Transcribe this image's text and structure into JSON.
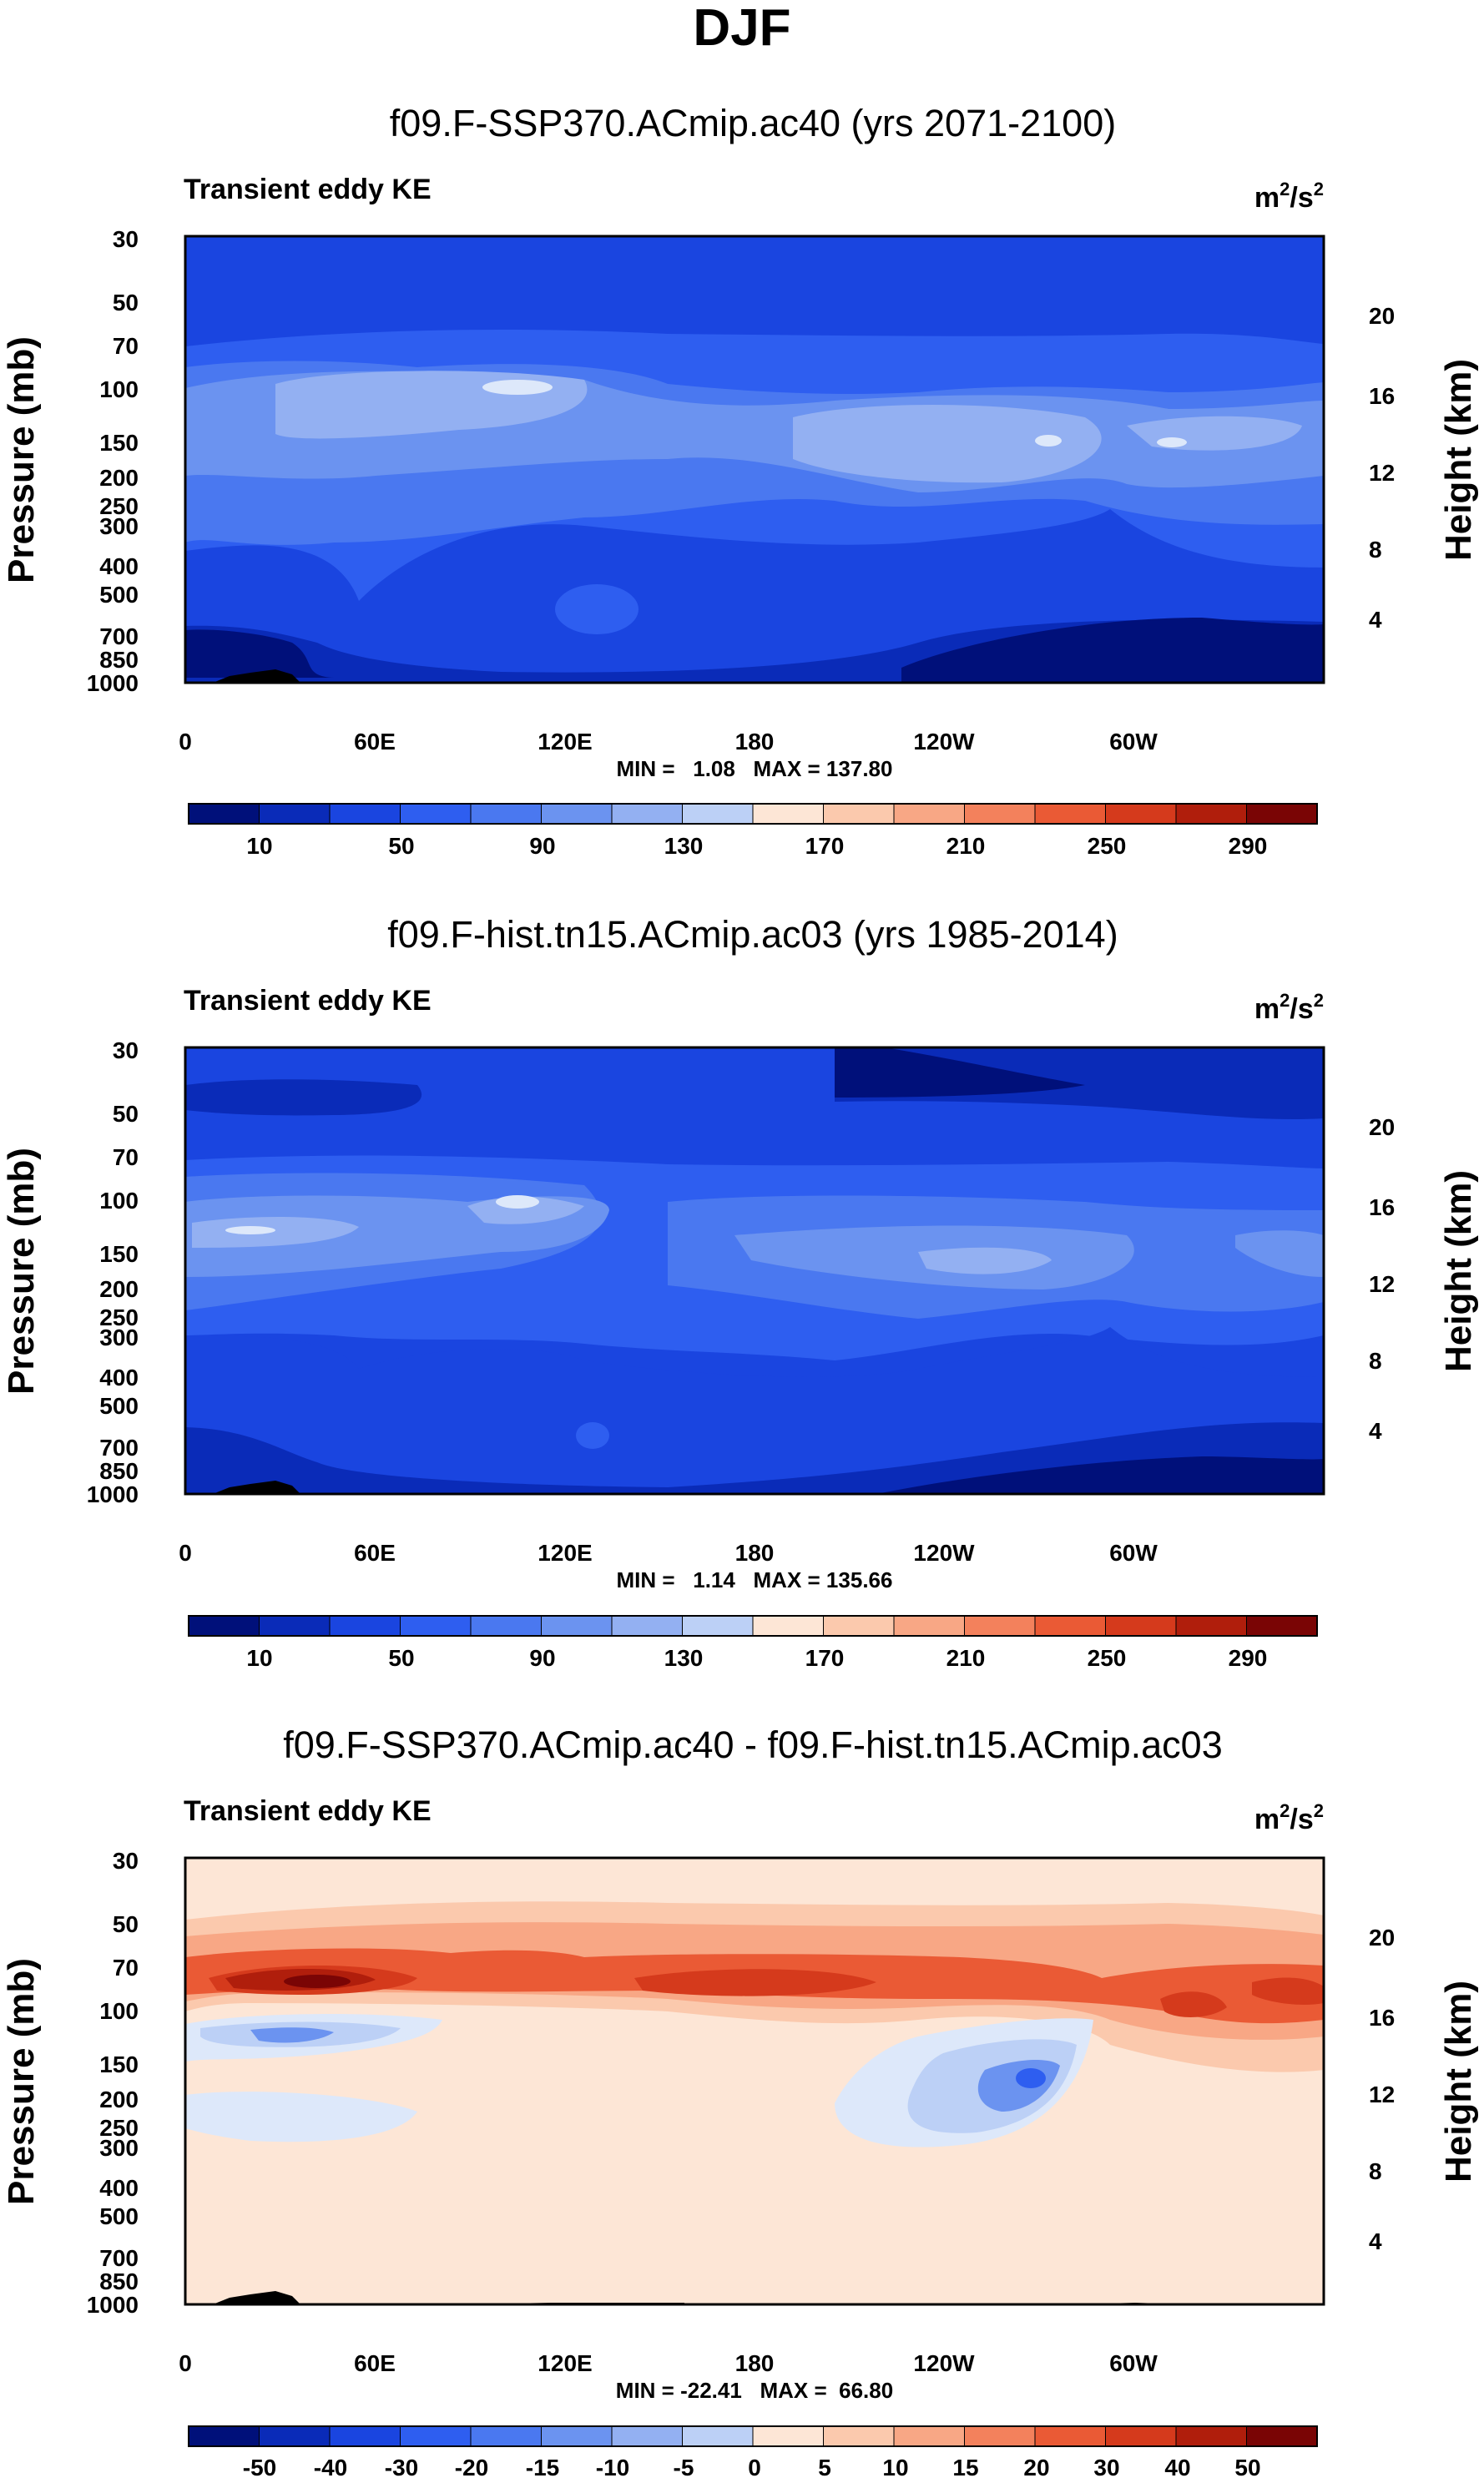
{
  "page_title": "DJF",
  "chart_data": [
    {
      "type": "contour",
      "title": "f09.F-SSP370.ACmip.ac40 (yrs 2071-2100)",
      "left_label": "Transient eddy KE",
      "units_base": "m",
      "units_exp": "2",
      "units_mid": "/s",
      "ylabel": "Pressure (mb)",
      "ylabel_right": "Height (km)",
      "x_ticks": [
        "0",
        "60E",
        "120E",
        "180",
        "120W",
        "60W"
      ],
      "y_ticks": [
        "30",
        "50",
        "70",
        "100",
        "150",
        "200",
        "250",
        "300",
        "400",
        "500",
        "700",
        "850",
        "1000"
      ],
      "y_ticks_right": [
        "20",
        "16",
        "12",
        "8",
        "4"
      ],
      "stats": "MIN =   1.08   MAX = 137.80",
      "min": 1.08,
      "max": 137.8,
      "colorbar_labels": [
        "10",
        "50",
        "90",
        "130",
        "170",
        "210",
        "250",
        "290"
      ]
    },
    {
      "type": "contour",
      "title": "f09.F-hist.tn15.ACmip.ac03 (yrs 1985-2014)",
      "left_label": "Transient eddy KE",
      "units_base": "m",
      "units_exp": "2",
      "units_mid": "/s",
      "ylabel": "Pressure (mb)",
      "ylabel_right": "Height (km)",
      "x_ticks": [
        "0",
        "60E",
        "120E",
        "180",
        "120W",
        "60W"
      ],
      "y_ticks": [
        "30",
        "50",
        "70",
        "100",
        "150",
        "200",
        "250",
        "300",
        "400",
        "500",
        "700",
        "850",
        "1000"
      ],
      "y_ticks_right": [
        "20",
        "16",
        "12",
        "8",
        "4"
      ],
      "stats": "MIN =   1.14   MAX = 135.66",
      "min": 1.14,
      "max": 135.66,
      "colorbar_labels": [
        "10",
        "50",
        "90",
        "130",
        "170",
        "210",
        "250",
        "290"
      ]
    },
    {
      "type": "contour",
      "title": "f09.F-SSP370.ACmip.ac40 - f09.F-hist.tn15.ACmip.ac03",
      "left_label": "Transient eddy KE",
      "units_base": "m",
      "units_exp": "2",
      "units_mid": "/s",
      "ylabel": "Pressure (mb)",
      "ylabel_right": "Height (km)",
      "x_ticks": [
        "0",
        "60E",
        "120E",
        "180",
        "120W",
        "60W"
      ],
      "y_ticks": [
        "30",
        "50",
        "70",
        "100",
        "150",
        "200",
        "250",
        "300",
        "400",
        "500",
        "700",
        "850",
        "1000"
      ],
      "y_ticks_right": [
        "20",
        "16",
        "12",
        "8",
        "4"
      ],
      "stats": "MIN = -22.41   MAX =  66.80",
      "min": -22.41,
      "max": 66.8,
      "colorbar_labels": [
        "-50",
        "-40",
        "-30",
        "-20",
        "-15",
        "-10",
        "-5",
        "0",
        "5",
        "10",
        "15",
        "20",
        "30",
        "40",
        "50"
      ]
    }
  ],
  "colors": {
    "colorbar_16": [
      "#00107a",
      "#0a2bb8",
      "#1a45e0",
      "#2e5ef0",
      "#4a78f0",
      "#6b93f0",
      "#93b0f2",
      "#bcd0f6",
      "#dde8fa",
      "#fde6d6",
      "#fbc9ad",
      "#f8a785",
      "#f3815c",
      "#ea5a35",
      "#d53a1c",
      "#b01e0c",
      "#7a0505"
    ],
    "panel1": {
      "upper": "#1a45e0",
      "jet": "#6b93f0",
      "jet_core": "#bcd0f6",
      "mid": "#2e5ef0",
      "low": "#0a2bb8",
      "surface": "#00107a"
    },
    "panel2": {
      "upper": "#1a45e0",
      "jet": "#6b93f0",
      "jet_core": "#bcd0f6",
      "mid": "#2e5ef0",
      "low": "#0a2bb8",
      "surface": "#00107a"
    },
    "panel3": {
      "base": "#fde6d6",
      "band1": "#fbc9ad",
      "band2": "#f8a785",
      "band3": "#ea5a35",
      "core": "#b01e0c",
      "neg1": "#dde8fa",
      "neg2": "#bcd0f6",
      "neg3": "#6b93f0",
      "neg4": "#2e5ef0"
    }
  }
}
